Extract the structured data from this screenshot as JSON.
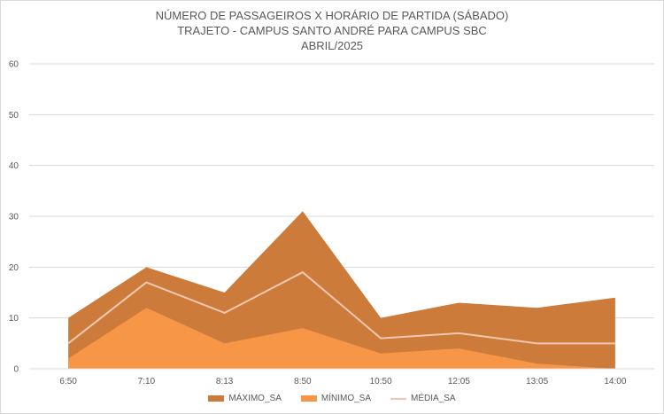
{
  "chart_data": {
    "type": "area",
    "title": [
      "NÚMERO DE PASSAGEIROS X HORÁRIO DE PARTIDA (SÁBADO)",
      "TRAJETO - CAMPUS SANTO ANDRÉ PARA CAMPUS SBC",
      "ABRIL/2025"
    ],
    "categories": [
      "6:50",
      "7:10",
      "8:13",
      "8:50",
      "10:50",
      "12:05",
      "13:05",
      "14:00"
    ],
    "ylim": [
      0,
      60
    ],
    "yticks": [
      0,
      10,
      20,
      30,
      40,
      50,
      60
    ],
    "grid": true,
    "legend_position": "bottom",
    "series": [
      {
        "name": "MÁXIMO_SA",
        "kind": "area",
        "color": "#cd7b3a",
        "values": [
          10,
          20,
          15,
          31,
          10,
          13,
          12,
          14
        ]
      },
      {
        "name": "MÍNIMO_SA",
        "kind": "area",
        "color": "#f79646",
        "values": [
          2,
          12,
          5,
          8,
          3,
          4,
          1,
          0
        ]
      },
      {
        "name": "MÉDIA_SA",
        "kind": "line",
        "color": "#f4c7b0",
        "values": [
          5,
          17,
          11,
          19,
          6,
          7,
          5,
          5
        ]
      }
    ]
  }
}
